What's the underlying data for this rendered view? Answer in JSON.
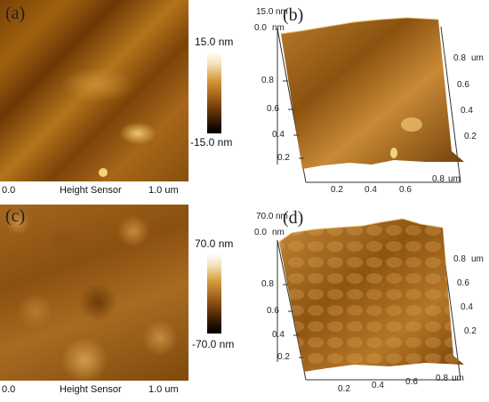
{
  "panels": {
    "a": {
      "letter": "(a)",
      "scale_max": "15.0 nm",
      "scale_min": "-15.0 nm",
      "footer_left": "0.0",
      "footer_center": "Height Sensor",
      "footer_right": "1.0 um"
    },
    "b": {
      "letter": "(b)",
      "z_top": "15.0",
      "z_unit": "nm",
      "origin": "0.0",
      "origin_unit": "nm",
      "y_ticks_left": [
        "0.8",
        "0.6",
        "0.4",
        "0.2"
      ],
      "y_ticks_right": [
        "0.8",
        "0.6",
        "0.4",
        "0.2"
      ],
      "x_ticks": [
        "0.2",
        "0.4",
        "0.6",
        "0.8"
      ],
      "x_unit": "um",
      "y_unit": "um"
    },
    "c": {
      "letter": "(c)",
      "scale_max": "70.0 nm",
      "scale_min": "-70.0 nm",
      "footer_left": "0.0",
      "footer_center": "Height Sensor",
      "footer_right": "1.0 um"
    },
    "d": {
      "letter": "(d)",
      "z_top": "70.0",
      "z_unit": "nm",
      "origin": "0.0",
      "origin_unit": "nm",
      "y_ticks_left": [
        "0.8",
        "0.6",
        "0.4",
        "0.2"
      ],
      "y_ticks_right": [
        "0.8",
        "0.6",
        "0.4",
        "0.2"
      ],
      "x_ticks": [
        "0.2",
        "0.4",
        "0.6",
        "0.8"
      ],
      "x_unit": "um",
      "y_unit": "um"
    }
  }
}
